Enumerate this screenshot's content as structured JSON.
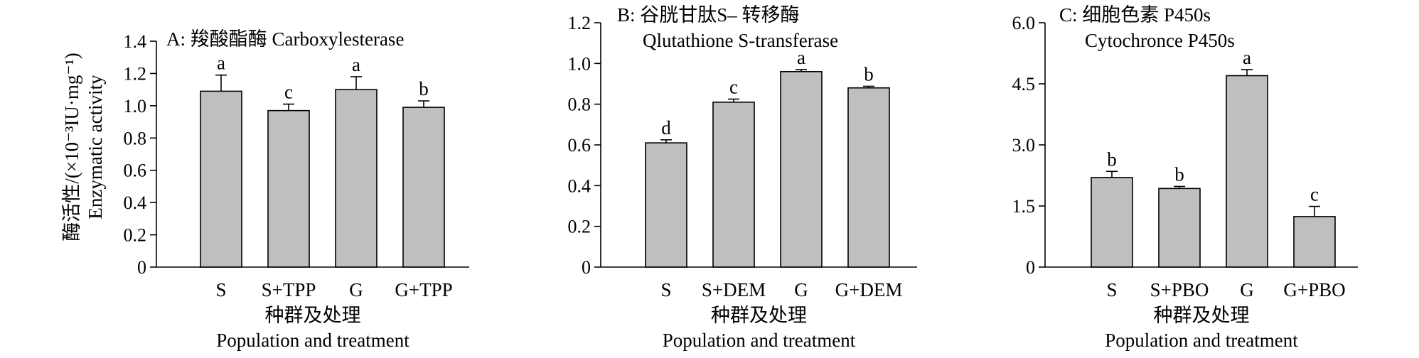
{
  "chart_data": [
    {
      "type": "bar",
      "title_line1": "A: 羧酸酯酶 Carboxylesterase",
      "title_line2": "",
      "categories": [
        "S",
        "S+TPP",
        "G",
        "G+TPP"
      ],
      "values": [
        1.09,
        0.97,
        1.1,
        0.99
      ],
      "errors": [
        0.1,
        0.04,
        0.08,
        0.04
      ],
      "letters": [
        "a",
        "c",
        "a",
        "b"
      ],
      "ylim": [
        0,
        1.4
      ],
      "yticks": [
        "0",
        "0.2",
        "0.4",
        "0.6",
        "0.8",
        "1.0",
        "1.2",
        "1.4"
      ],
      "ytick_values": [
        0,
        0.2,
        0.4,
        0.6,
        0.8,
        1.0,
        1.2,
        1.4
      ],
      "ylabel_line1": "酶活性/(×10⁻³IU·mg⁻¹)",
      "ylabel_line2": "Enzymatic activity",
      "xlabel_line1": "种群及处理",
      "xlabel_line2": "Population and treatment"
    },
    {
      "type": "bar",
      "title_line1": "B: 谷胱甘肽S– 转移酶",
      "title_line2": "Qlutathione S-transferase",
      "categories": [
        "S",
        "S+DEM",
        "G",
        "G+DEM"
      ],
      "values": [
        0.61,
        0.81,
        0.96,
        0.88
      ],
      "errors": [
        0.015,
        0.015,
        0.01,
        0.008
      ],
      "letters": [
        "d",
        "c",
        "a",
        "b"
      ],
      "ylim": [
        0,
        1.2
      ],
      "yticks": [
        "0",
        "0.2",
        "0.4",
        "0.6",
        "0.8",
        "1.0",
        "1.2"
      ],
      "ytick_values": [
        0,
        0.2,
        0.4,
        0.6,
        0.8,
        1.0,
        1.2
      ],
      "ylabel_line1": "",
      "ylabel_line2": "",
      "xlabel_line1": "种群及处理",
      "xlabel_line2": "Population and treatment"
    },
    {
      "type": "bar",
      "title_line1": "C: 细胞色素 P450s",
      "title_line2": "Cytochronce P450s",
      "categories": [
        "S",
        "S+PBO",
        "G",
        "G+PBO"
      ],
      "values": [
        2.2,
        1.93,
        4.7,
        1.24
      ],
      "errors": [
        0.15,
        0.05,
        0.15,
        0.25
      ],
      "letters": [
        "b",
        "b",
        "a",
        "c"
      ],
      "ylim": [
        0,
        6.0
      ],
      "yticks": [
        "0",
        "1.5",
        "3.0",
        "4.5",
        "6.0"
      ],
      "ytick_values": [
        0,
        1.5,
        3.0,
        4.5,
        6.0
      ],
      "ylabel_line1": "",
      "ylabel_line2": "",
      "xlabel_line1": "种群及处理",
      "xlabel_line2": "Population and treatment"
    }
  ]
}
